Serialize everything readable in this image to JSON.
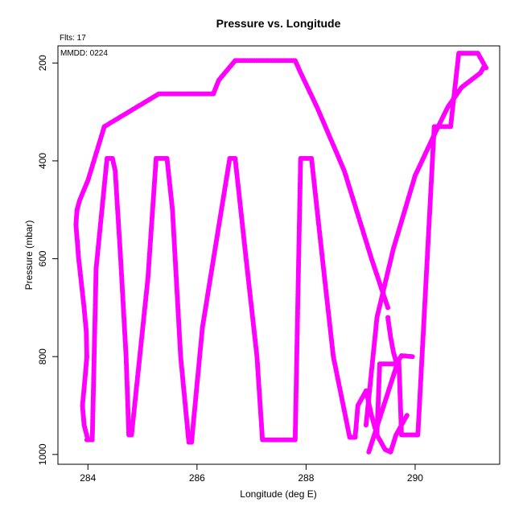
{
  "chart_data": {
    "type": "scatter",
    "title": "Pressure vs. Longitude",
    "xlabel": "Longitude (deg E)",
    "ylabel": "Pressure (mbar)",
    "annotations": {
      "flights": "Flts: 17",
      "date": "MMDD: 0224"
    },
    "xlim": [
      283.45,
      291.55
    ],
    "ylim": [
      1020,
      165
    ],
    "y_reversed": true,
    "grid": false,
    "xticks": [
      284,
      286,
      288,
      290
    ],
    "yticks": [
      200,
      400,
      600,
      800,
      1000
    ],
    "marker_color": "#ff00ff",
    "series": [
      {
        "x": [
          283.8,
          283.85,
          284.0,
          284.3,
          285.3,
          286.3,
          286.4,
          286.7,
          287.8,
          287.9,
          288.2,
          288.7,
          289.2,
          289.5
        ],
        "y": [
          500,
          480,
          440,
          330,
          263,
          263,
          235,
          195,
          195,
          220,
          290,
          420,
          600,
          700
        ]
      },
      {
        "x": [
          289.5,
          289.55,
          289.6,
          289.65,
          289.7
        ],
        "y": [
          720,
          760,
          790,
          810,
          825
        ]
      },
      {
        "x": [
          283.8,
          283.78,
          283.83,
          283.93,
          283.97,
          283.98
        ],
        "y": [
          500,
          530,
          600,
          700,
          750,
          800
        ]
      },
      {
        "x": [
          283.98,
          283.95,
          283.9,
          283.93,
          284.0
        ],
        "y": [
          800,
          840,
          900,
          940,
          970
        ]
      },
      {
        "x": [
          283.98,
          284.08,
          284.15,
          284.35,
          284.45,
          284.5,
          284.6,
          284.7,
          284.75,
          284.8,
          285.1,
          285.25,
          285.45,
          285.55,
          285.7,
          285.85,
          285.9,
          286.1,
          286.6,
          286.7,
          286.9,
          287.1,
          287.2,
          287.8,
          287.9,
          288.1,
          288.3,
          288.5,
          288.8,
          288.9,
          288.95,
          289.1
        ],
        "y": [
          970,
          970,
          620,
          395,
          395,
          420,
          600,
          800,
          960,
          960,
          640,
          395,
          395,
          500,
          800,
          975,
          975,
          740,
          395,
          395,
          600,
          800,
          970,
          970,
          395,
          395,
          600,
          800,
          965,
          965,
          900,
          870
        ]
      },
      {
        "x": [
          289.1,
          289.2,
          289.3,
          289.45,
          289.55,
          289.65,
          289.85
        ],
        "y": [
          870,
          920,
          960,
          990,
          995,
          960,
          920
        ]
      },
      {
        "x": [
          289.1,
          289.3,
          289.6,
          290.0,
          290.4,
          290.6,
          290.85,
          291.2,
          291.25
        ],
        "y": [
          940,
          720,
          580,
          430,
          335,
          290,
          250,
          220,
          210
        ]
      },
      {
        "x": [
          289.15,
          289.7,
          289.75,
          289.95,
          290.05,
          290.35,
          290.65,
          290.8,
          290.85,
          291.15,
          291.3
        ],
        "y": [
          995,
          805,
          960,
          960,
          960,
          330,
          330,
          180,
          180,
          180,
          210
        ]
      },
      {
        "x": [
          289.3,
          289.35,
          289.65,
          289.75,
          289.95
        ],
        "y": [
          960,
          815,
          815,
          798,
          800
        ]
      }
    ]
  }
}
